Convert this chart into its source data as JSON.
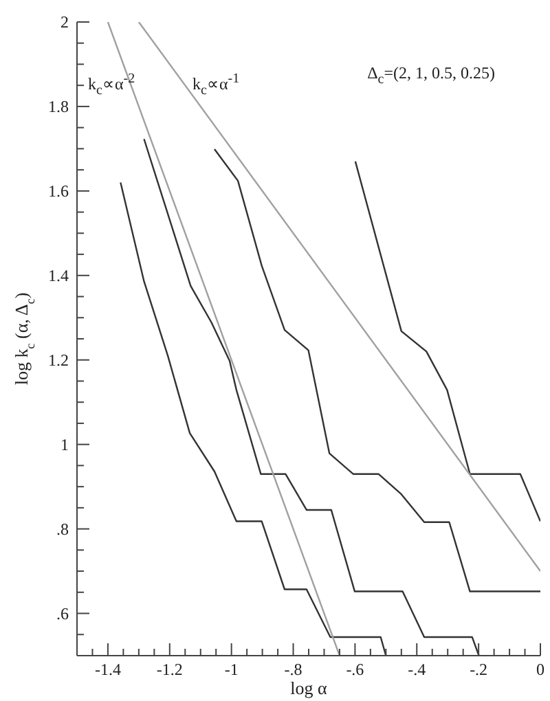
{
  "chart_data": {
    "type": "line",
    "xlabel": "log α",
    "ylabel": "log k$_{c}$ (α, Δ$_{c}$)",
    "annotations": [
      "k$_{c}$∝α$^{-2}$",
      "k$_{c}$∝α$^{-1}$",
      "Δ$_{c}$=(2, 1, 0.5, 0.25)"
    ],
    "series": [
      {
        "color": "#333333",
        "x": [
          -1.359,
          -1.283,
          -1.206,
          -1.135,
          -1.055,
          -0.984,
          -0.902,
          -0.828,
          -0.757,
          -0.68,
          -0.517,
          -0.5
        ],
        "values": [
          1.62,
          1.386,
          1.21,
          1.027,
          0.936,
          0.818,
          0.818,
          0.657,
          0.657,
          0.544,
          0.544,
          0.5
        ]
      },
      {
        "color": "#333333",
        "x": [
          -1.283,
          -1.132,
          -1.065,
          -1.006,
          -0.984,
          -0.905,
          -0.825,
          -0.757,
          -0.677,
          -0.601,
          -0.446,
          -0.376,
          -0.221,
          -0.199
        ],
        "values": [
          1.723,
          1.375,
          1.289,
          1.198,
          1.129,
          0.93,
          0.93,
          0.845,
          0.845,
          0.652,
          0.652,
          0.544,
          0.544,
          0.5
        ]
      },
      {
        "color": "#333333",
        "x": [
          -1.055,
          -0.979,
          -0.902,
          -0.828,
          -0.751,
          -0.683,
          -0.606,
          -0.524,
          -0.45,
          -0.376,
          -0.295,
          -0.228,
          0
        ],
        "values": [
          1.699,
          1.624,
          1.423,
          1.271,
          1.223,
          0.979,
          0.93,
          0.93,
          0.882,
          0.816,
          0.816,
          0.652,
          0.652
        ]
      },
      {
        "color": "#333333",
        "x": [
          -0.599,
          -0.45,
          -0.369,
          -0.302,
          -0.228,
          -0.065,
          0
        ],
        "values": [
          1.67,
          1.268,
          1.22,
          1.129,
          0.93,
          0.93,
          0.818
        ]
      },
      {
        "color": "#a0a0a0",
        "x": [
          -1.4,
          -0.65
        ],
        "values": [
          2,
          0.5
        ]
      },
      {
        "color": "#a0a0a0",
        "x": [
          -1.3,
          0
        ],
        "values": [
          2,
          0.7
        ]
      }
    ],
    "xlim": [
      -1.5,
      0
    ],
    "xticks": [
      {
        "value": -1.45,
        "label": null
      },
      {
        "value": -1.4,
        "label": "-1.4"
      },
      {
        "value": -1.35,
        "label": null
      },
      {
        "value": -1.3,
        "label": null
      },
      {
        "value": -1.25,
        "label": null
      },
      {
        "value": -1.2,
        "label": "-1.2"
      },
      {
        "value": -1.15,
        "label": null
      },
      {
        "value": -1.1,
        "label": null
      },
      {
        "value": -1.05,
        "label": null
      },
      {
        "value": -1,
        "label": "-1"
      },
      {
        "value": -0.95,
        "label": null
      },
      {
        "value": -0.9,
        "label": null
      },
      {
        "value": -0.85,
        "label": null
      },
      {
        "value": -0.8,
        "label": "-.8"
      },
      {
        "value": -0.75,
        "label": null
      },
      {
        "value": -0.7,
        "label": null
      },
      {
        "value": -0.65,
        "label": null
      },
      {
        "value": -0.6,
        "label": "-.6"
      },
      {
        "value": -0.55,
        "label": null
      },
      {
        "value": -0.5,
        "label": null
      },
      {
        "value": -0.45,
        "label": null
      },
      {
        "value": -0.4,
        "label": "-.4"
      },
      {
        "value": -0.35,
        "label": null
      },
      {
        "value": -0.3,
        "label": null
      },
      {
        "value": -0.25,
        "label": null
      },
      {
        "value": -0.2,
        "label": "-.2"
      },
      {
        "value": -0.15,
        "label": null
      },
      {
        "value": -0.1,
        "label": null
      },
      {
        "value": -0.05,
        "label": null
      },
      0
    ],
    "ylim": [
      0.5,
      2
    ],
    "yticks": [
      {
        "value": 0.55,
        "label": null
      },
      {
        "value": 0.6,
        "label": ".6"
      },
      {
        "value": 0.65,
        "label": null
      },
      {
        "value": 0.7,
        "label": null
      },
      {
        "value": 0.75,
        "label": null
      },
      {
        "value": 0.8,
        "label": ".8"
      },
      {
        "value": 0.85,
        "label": null
      },
      {
        "value": 0.9,
        "label": null
      },
      {
        "value": 0.95,
        "label": null
      },
      1,
      {
        "value": 1.05,
        "label": null
      },
      {
        "value": 1.1,
        "label": null
      },
      {
        "value": 1.15,
        "label": null
      },
      {
        "value": 1.2,
        "label": "1.2"
      },
      {
        "value": 1.25,
        "label": null
      },
      {
        "value": 1.3,
        "label": null
      },
      {
        "value": 1.35,
        "label": null
      },
      {
        "value": 1.4,
        "label": "1.4"
      },
      {
        "value": 1.45,
        "label": null
      },
      {
        "value": 1.5,
        "label": null
      },
      {
        "value": 1.55,
        "label": null
      },
      {
        "value": 1.6,
        "label": "1.6"
      },
      {
        "value": 1.65,
        "label": null
      },
      {
        "value": 1.7,
        "label": null
      },
      {
        "value": 1.75,
        "label": null
      },
      {
        "value": 1.8,
        "label": "1.8"
      },
      {
        "value": 1.85,
        "label": null
      },
      {
        "value": 1.9,
        "label": null
      },
      {
        "value": 1.95,
        "label": null
      },
      2
    ],
    "legend": false,
    "grid": false,
    "marker": "none",
    "line_style": "solid"
  }
}
